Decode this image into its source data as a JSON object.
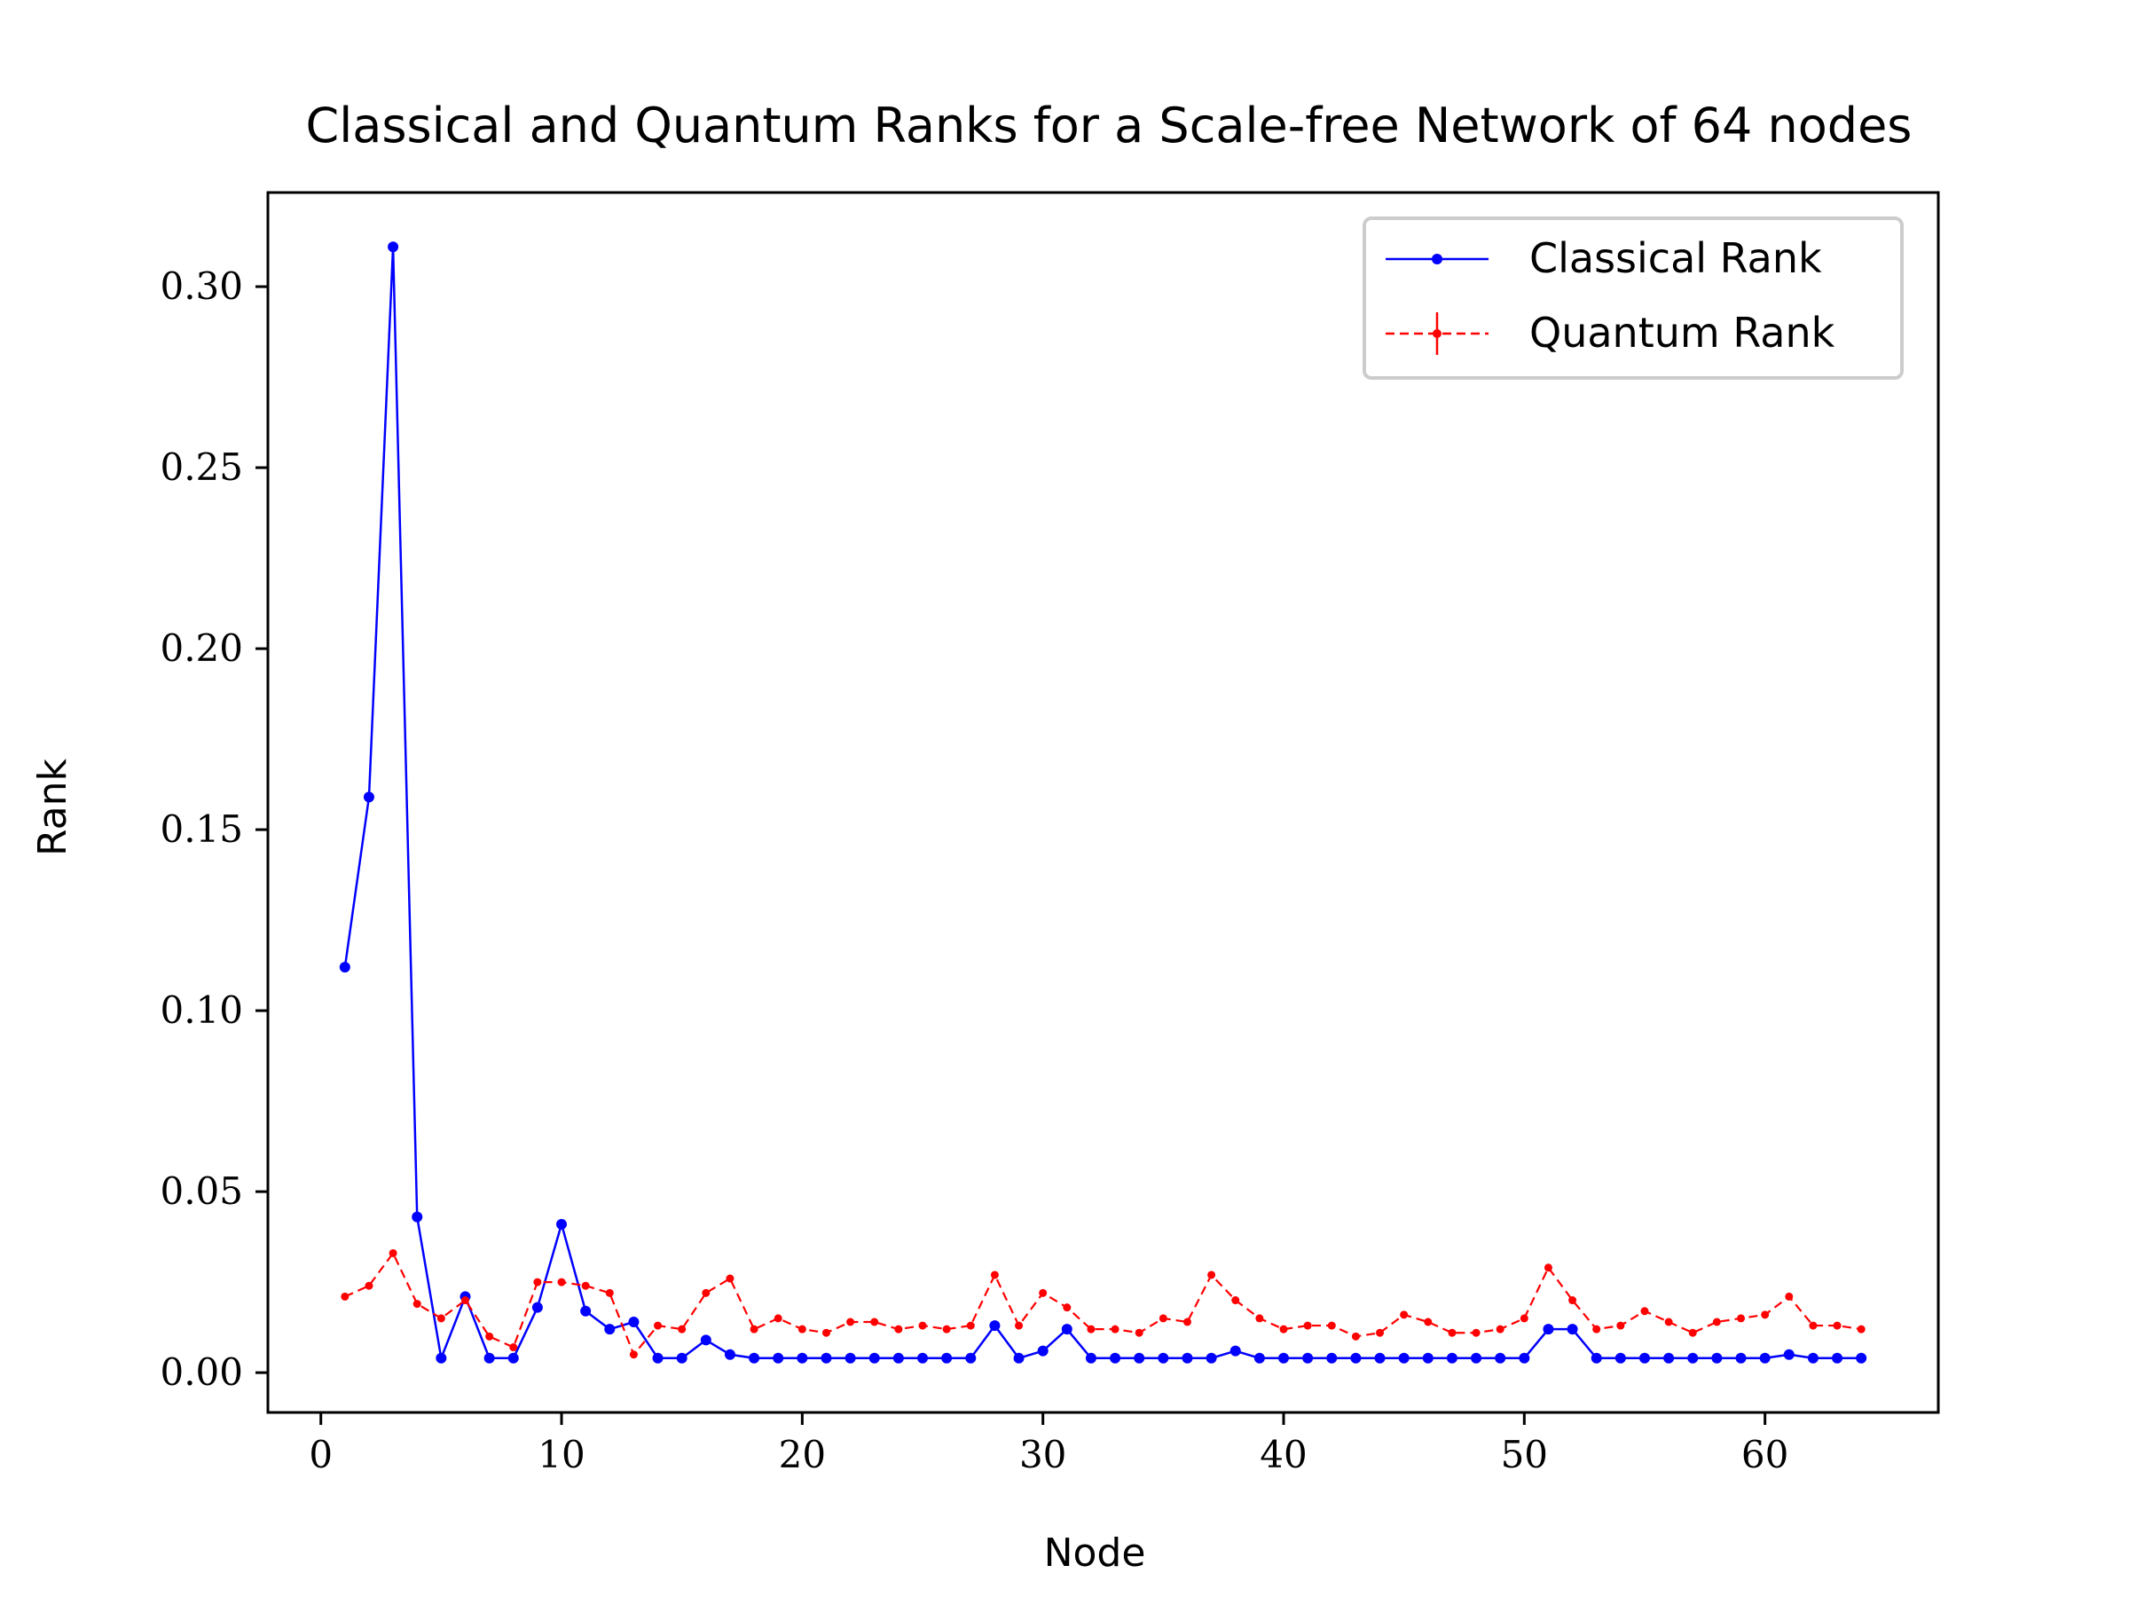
{
  "chart_data": {
    "type": "line",
    "title": "Classical and Quantum Ranks for a Scale-free Network of 64 nodes",
    "xlabel": "Node",
    "ylabel": "Rank",
    "xlim": [
      -2.2,
      67.2
    ],
    "ylim": [
      -0.011,
      0.326
    ],
    "xticks": [
      0,
      10,
      20,
      30,
      40,
      50,
      60
    ],
    "xtick_labels": [
      "0",
      "10",
      "20",
      "30",
      "40",
      "50",
      "60"
    ],
    "yticks": [
      0.0,
      0.05,
      0.1,
      0.15,
      0.2,
      0.25,
      0.3
    ],
    "ytick_labels": [
      "0.00",
      "0.05",
      "0.10",
      "0.15",
      "0.20",
      "0.25",
      "0.30"
    ],
    "grid": false,
    "legend_position": "top-right",
    "x": [
      1,
      2,
      3,
      4,
      5,
      6,
      7,
      8,
      9,
      10,
      11,
      12,
      13,
      14,
      15,
      16,
      17,
      18,
      19,
      20,
      21,
      22,
      23,
      24,
      25,
      26,
      27,
      28,
      29,
      30,
      31,
      32,
      33,
      34,
      35,
      36,
      37,
      38,
      39,
      40,
      41,
      42,
      43,
      44,
      45,
      46,
      47,
      48,
      49,
      50,
      51,
      52,
      53,
      54,
      55,
      56,
      57,
      58,
      59,
      60,
      61,
      62,
      63,
      64
    ],
    "series": [
      {
        "name": "Classical Rank",
        "color": "#0000ff",
        "style": "solid",
        "values": [
          0.112,
          0.159,
          0.311,
          0.043,
          0.004,
          0.021,
          0.004,
          0.004,
          0.018,
          0.041,
          0.017,
          0.012,
          0.014,
          0.004,
          0.004,
          0.009,
          0.005,
          0.004,
          0.004,
          0.004,
          0.004,
          0.004,
          0.004,
          0.004,
          0.004,
          0.004,
          0.004,
          0.013,
          0.004,
          0.006,
          0.012,
          0.004,
          0.004,
          0.004,
          0.004,
          0.004,
          0.004,
          0.006,
          0.004,
          0.004,
          0.004,
          0.004,
          0.004,
          0.004,
          0.004,
          0.004,
          0.004,
          0.004,
          0.004,
          0.004,
          0.012,
          0.012,
          0.004,
          0.004,
          0.004,
          0.004,
          0.004,
          0.004,
          0.004,
          0.004,
          0.005,
          0.004,
          0.004,
          0.004
        ]
      },
      {
        "name": "Quantum Rank",
        "color": "#ff0000",
        "style": "dashed",
        "values": [
          0.021,
          0.024,
          0.033,
          0.019,
          0.015,
          0.02,
          0.01,
          0.007,
          0.025,
          0.025,
          0.024,
          0.022,
          0.005,
          0.013,
          0.012,
          0.022,
          0.026,
          0.012,
          0.015,
          0.012,
          0.011,
          0.014,
          0.014,
          0.012,
          0.013,
          0.012,
          0.013,
          0.027,
          0.013,
          0.022,
          0.018,
          0.012,
          0.012,
          0.011,
          0.015,
          0.014,
          0.027,
          0.02,
          0.015,
          0.012,
          0.013,
          0.013,
          0.01,
          0.011,
          0.016,
          0.014,
          0.011,
          0.011,
          0.012,
          0.015,
          0.029,
          0.02,
          0.012,
          0.013,
          0.017,
          0.014,
          0.011,
          0.014,
          0.015,
          0.016,
          0.021,
          0.013,
          0.013,
          0.012
        ]
      }
    ]
  }
}
